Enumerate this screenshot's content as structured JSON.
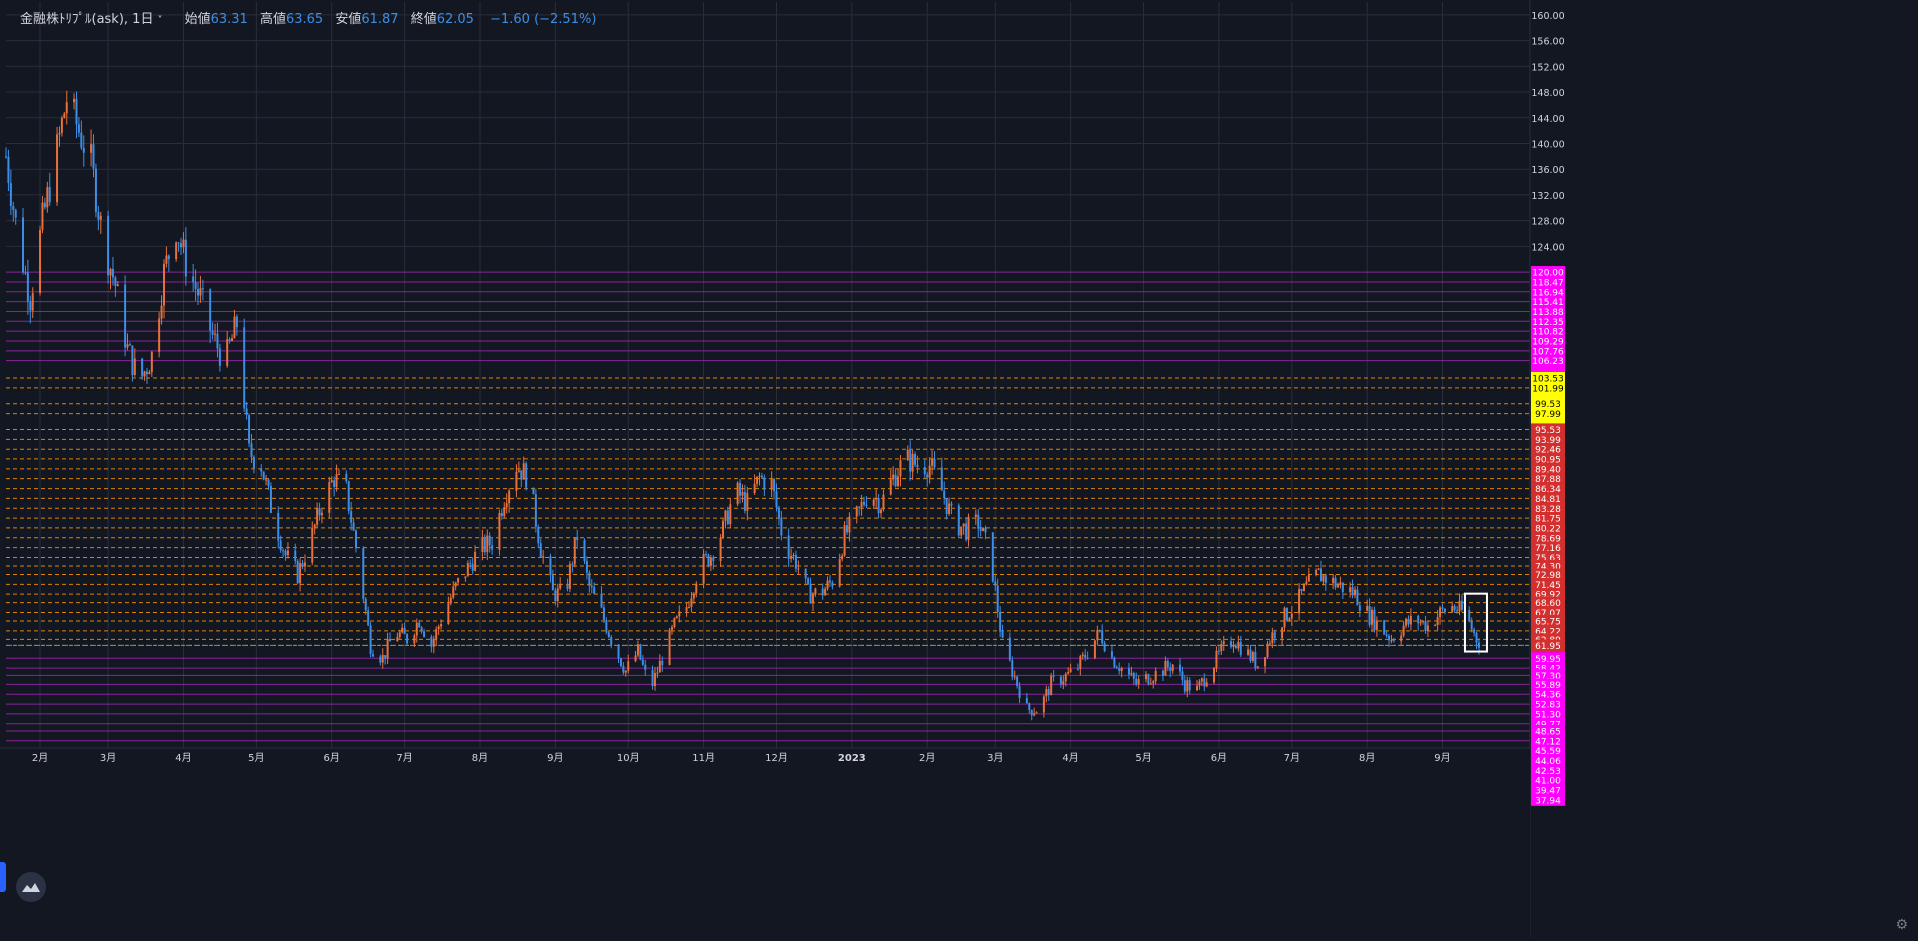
{
  "legend": {
    "symbol": "金融株ﾄﾘﾌﾟﾙ(ask), 1日",
    "open_label": "始値",
    "open": "63.31",
    "high_label": "高値",
    "high": "63.65",
    "low_label": "安値",
    "low": "61.87",
    "close_label": "終値",
    "close": "62.05",
    "change": "−1.60 (−2.51%)"
  },
  "colors": {
    "background": "#131722",
    "grid": "#2a2e39",
    "up_candle": "#e8703a",
    "down_candle": "#3d8ee6",
    "magenta_zone": "#ff00ff",
    "yellow_zone": "#ffff00",
    "red_zone": "#d32f2f",
    "purple_line": "#9c27b0",
    "orange_dash": "#ff9800",
    "green_line": "#4caf50"
  },
  "icons": {
    "logo": "tradingview-logo-icon",
    "settings": "gear-icon",
    "caret": "chevron-down-icon"
  },
  "chart_data": {
    "type": "candlestick",
    "title": "金融株ﾄﾘﾌﾟﾙ(ask), 1日",
    "ylim": [
      46,
      162
    ],
    "y_ticks": [
      160,
      156,
      152,
      148,
      144,
      140,
      136,
      132,
      128,
      124
    ],
    "x_labels": [
      {
        "label": "2月",
        "day": 14
      },
      {
        "label": "3月",
        "day": 42
      },
      {
        "label": "4月",
        "day": 73
      },
      {
        "label": "5月",
        "day": 103
      },
      {
        "label": "6月",
        "day": 134
      },
      {
        "label": "7月",
        "day": 164
      },
      {
        "label": "8月",
        "day": 195
      },
      {
        "label": "9月",
        "day": 226
      },
      {
        "label": "10月",
        "day": 256
      },
      {
        "label": "11月",
        "day": 287
      },
      {
        "label": "12月",
        "day": 317
      },
      {
        "label": "2023",
        "day": 348
      },
      {
        "label": "2月",
        "day": 379
      },
      {
        "label": "3月",
        "day": 407
      },
      {
        "label": "4月",
        "day": 438
      },
      {
        "label": "5月",
        "day": 468
      },
      {
        "label": "6月",
        "day": 499
      },
      {
        "label": "7月",
        "day": 529
      },
      {
        "label": "8月",
        "day": 560
      },
      {
        "label": "9月",
        "day": 591
      }
    ],
    "x_range_days": [
      0,
      627
    ],
    "price_path": [
      [
        0,
        138
      ],
      [
        5,
        125
      ],
      [
        10,
        116
      ],
      [
        15,
        128
      ],
      [
        20,
        137
      ],
      [
        25,
        147
      ],
      [
        30,
        142
      ],
      [
        35,
        137
      ],
      [
        40,
        125
      ],
      [
        45,
        118
      ],
      [
        50,
        108
      ],
      [
        55,
        103
      ],
      [
        60,
        107
      ],
      [
        65,
        120
      ],
      [
        70,
        127
      ],
      [
        75,
        120
      ],
      [
        80,
        116
      ],
      [
        85,
        110
      ],
      [
        90,
        106
      ],
      [
        95,
        112
      ],
      [
        100,
        92
      ],
      [
        105,
        90
      ],
      [
        110,
        82
      ],
      [
        115,
        76
      ],
      [
        120,
        73
      ],
      [
        125,
        78
      ],
      [
        130,
        84
      ],
      [
        135,
        88
      ],
      [
        140,
        86
      ],
      [
        145,
        75
      ],
      [
        150,
        62
      ],
      [
        155,
        60
      ],
      [
        160,
        64
      ],
      [
        165,
        63
      ],
      [
        170,
        66
      ],
      [
        175,
        62
      ],
      [
        180,
        67
      ],
      [
        185,
        71
      ],
      [
        190,
        74
      ],
      [
        195,
        77
      ],
      [
        200,
        78
      ],
      [
        205,
        85
      ],
      [
        210,
        90
      ],
      [
        215,
        88
      ],
      [
        220,
        77
      ],
      [
        225,
        70
      ],
      [
        230,
        70
      ],
      [
        235,
        79
      ],
      [
        240,
        71
      ],
      [
        245,
        67
      ],
      [
        250,
        62
      ],
      [
        255,
        58
      ],
      [
        260,
        61
      ],
      [
        265,
        55
      ],
      [
        270,
        60
      ],
      [
        275,
        65
      ],
      [
        280,
        68
      ],
      [
        285,
        74
      ],
      [
        290,
        76
      ],
      [
        295,
        80
      ],
      [
        300,
        86
      ],
      [
        305,
        84
      ],
      [
        310,
        88
      ],
      [
        315,
        87
      ],
      [
        320,
        78
      ],
      [
        325,
        75
      ],
      [
        330,
        70
      ],
      [
        335,
        70
      ],
      [
        340,
        72
      ],
      [
        345,
        79
      ],
      [
        350,
        82
      ],
      [
        355,
        86
      ],
      [
        360,
        84
      ],
      [
        365,
        88
      ],
      [
        370,
        91
      ],
      [
        375,
        90
      ],
      [
        380,
        90
      ],
      [
        385,
        86
      ],
      [
        390,
        81
      ],
      [
        395,
        80
      ],
      [
        400,
        81
      ],
      [
        405,
        76
      ],
      [
        410,
        62
      ],
      [
        415,
        57
      ],
      [
        420,
        52
      ],
      [
        425,
        52
      ],
      [
        430,
        56
      ],
      [
        435,
        57
      ],
      [
        440,
        58
      ],
      [
        445,
        61
      ],
      [
        450,
        64
      ],
      [
        455,
        60
      ],
      [
        460,
        58
      ],
      [
        465,
        56
      ],
      [
        470,
        57
      ],
      [
        475,
        58
      ],
      [
        480,
        59
      ],
      [
        485,
        56
      ],
      [
        490,
        55
      ],
      [
        495,
        58
      ],
      [
        500,
        61
      ],
      [
        505,
        63
      ],
      [
        510,
        61
      ],
      [
        515,
        59
      ],
      [
        520,
        63
      ],
      [
        525,
        66
      ],
      [
        530,
        68
      ],
      [
        535,
        71
      ],
      [
        540,
        73
      ],
      [
        545,
        72
      ],
      [
        550,
        71
      ],
      [
        555,
        70
      ],
      [
        560,
        67
      ],
      [
        565,
        65
      ],
      [
        570,
        63
      ],
      [
        575,
        65
      ],
      [
        580,
        66
      ],
      [
        585,
        65
      ],
      [
        590,
        67
      ],
      [
        595,
        68
      ],
      [
        600,
        67
      ],
      [
        605,
        63
      ],
      [
        608,
        62
      ]
    ],
    "last_candle": {
      "open": 63.31,
      "high": 63.65,
      "low": 61.87,
      "close": 62.05
    }
  },
  "levels": {
    "magenta_upper": [
      "120.00",
      "118.47",
      "116.94",
      "115.41",
      "113.88",
      "112.35",
      "110.82",
      "109.29",
      "107.76",
      "106.23"
    ],
    "yellow": [
      "103.53",
      "101.99",
      "99.53",
      "97.99"
    ],
    "red": [
      "95.53",
      "93.99",
      "92.46",
      "90.95",
      "89.40",
      "87.88",
      "86.34",
      "84.81",
      "83.28",
      "81.75",
      "80.22",
      "78.69",
      "77.16",
      "75.63",
      "74.30",
      "72.98",
      "71.45",
      "69.92",
      "68.60",
      "67.07",
      "65.75",
      "64.22",
      "62.89",
      "61.95"
    ],
    "magenta_lower": [
      "59.95",
      "58.42",
      "57.30",
      "55.89",
      "54.36",
      "52.83",
      "51.30",
      "49.77",
      "48.65",
      "47.12",
      "45.59",
      "44.06",
      "42.53",
      "41.00",
      "39.47",
      "37.94"
    ]
  }
}
